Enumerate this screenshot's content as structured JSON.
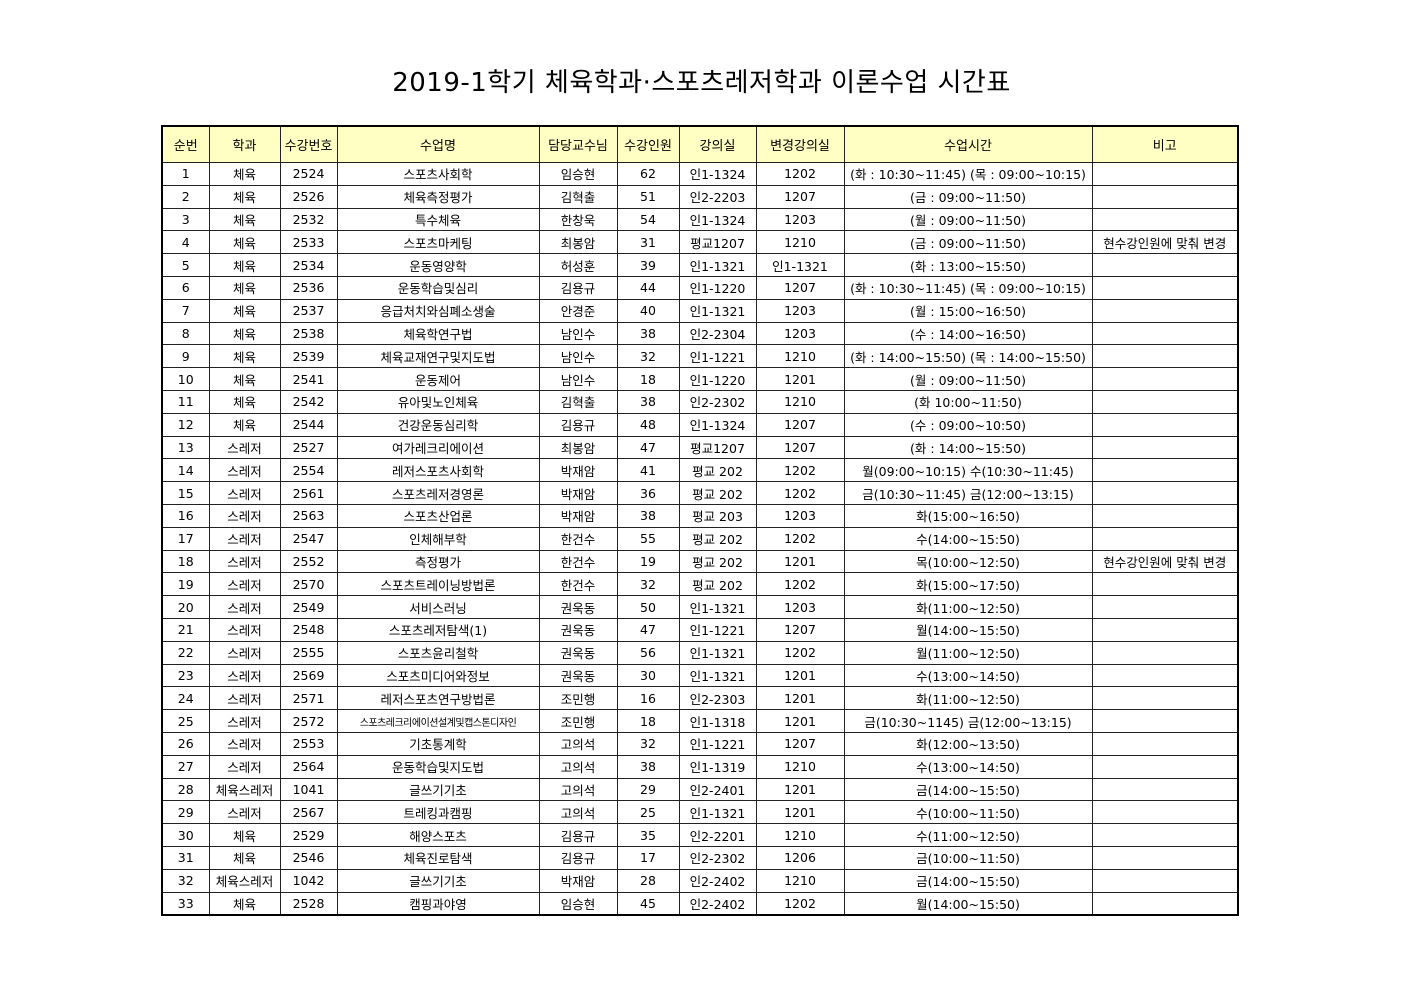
{
  "title": "2019-1학기 체육학과·스포츠레저학과 이론수업 시간표",
  "columns": [
    "순번",
    "학과",
    "수강번호",
    "수업명",
    "담당교수님",
    "수강인원",
    "강의실",
    "변경강의실",
    "수업시간",
    "비고"
  ],
  "header_color": "#ffffc4",
  "rows": [
    [
      "1",
      "체육",
      "2524",
      "스포츠사회학",
      "임승현",
      "62",
      "인1-1324",
      "1202",
      "(화 : 10:30~11:45) (목 : 09:00~10:15)",
      ""
    ],
    [
      "2",
      "체육",
      "2526",
      "체육측정평가",
      "김혁출",
      "51",
      "인2-2203",
      "1207",
      "(금 : 09:00~11:50)",
      ""
    ],
    [
      "3",
      "체육",
      "2532",
      "특수체육",
      "한창욱",
      "54",
      "인1-1324",
      "1203",
      "(월 : 09:00~11:50)",
      ""
    ],
    [
      "4",
      "체육",
      "2533",
      "스포츠마케팅",
      "최봉암",
      "31",
      "평교1207",
      "1210",
      "(금 : 09:00~11:50)",
      "현수강인원에 맞춰 변경"
    ],
    [
      "5",
      "체육",
      "2534",
      "운동영양학",
      "허성훈",
      "39",
      "인1-1321",
      "인1-1321",
      "(화 : 13:00~15:50)",
      ""
    ],
    [
      "6",
      "체육",
      "2536",
      "운동학습및심리",
      "김용규",
      "44",
      "인1-1220",
      "1207",
      "(화 : 10:30~11:45) (목 : 09:00~10:15)",
      ""
    ],
    [
      "7",
      "체육",
      "2537",
      "응급처치와심폐소생술",
      "안경준",
      "40",
      "인1-1321",
      "1203",
      "(월 : 15:00~16:50)",
      ""
    ],
    [
      "8",
      "체육",
      "2538",
      "체육학연구법",
      "남인수",
      "38",
      "인2-2304",
      "1203",
      "(수 : 14:00~16:50)",
      ""
    ],
    [
      "9",
      "체육",
      "2539",
      "체육교재연구및지도법",
      "남인수",
      "32",
      "인1-1221",
      "1210",
      "(화 : 14:00~15:50) (목 : 14:00~15:50)",
      ""
    ],
    [
      "10",
      "체육",
      "2541",
      "운동제어",
      "남인수",
      "18",
      "인1-1220",
      "1201",
      "(월 : 09:00~11:50)",
      ""
    ],
    [
      "11",
      "체육",
      "2542",
      "유아및노인체육",
      "김혁출",
      "38",
      "인2-2302",
      "1210",
      "(화 10:00~11:50)",
      ""
    ],
    [
      "12",
      "체육",
      "2544",
      "건강운동심리학",
      "김용규",
      "48",
      "인1-1324",
      "1207",
      "(수 : 09:00~10:50)",
      ""
    ],
    [
      "13",
      "스레저",
      "2527",
      "여가레크리에이션",
      "최봉암",
      "47",
      "평교1207",
      "1207",
      "(화 : 14:00~15:50)",
      ""
    ],
    [
      "14",
      "스레저",
      "2554",
      "레저스포츠사회학",
      "박재암",
      "41",
      "평교 202",
      "1202",
      "월(09:00~10:15) 수(10:30~11:45)",
      ""
    ],
    [
      "15",
      "스레저",
      "2561",
      "스포츠레저경영론",
      "박재암",
      "36",
      "평교 202",
      "1202",
      "금(10:30~11:45) 금(12:00~13:15)",
      ""
    ],
    [
      "16",
      "스레저",
      "2563",
      "스포츠산업론",
      "박재암",
      "38",
      "평교 203",
      "1203",
      "화(15:00~16:50)",
      ""
    ],
    [
      "17",
      "스레저",
      "2547",
      "인체해부학",
      "한건수",
      "55",
      "평교 202",
      "1202",
      "수(14:00~15:50)",
      ""
    ],
    [
      "18",
      "스레저",
      "2552",
      "측정평가",
      "한건수",
      "19",
      "평교 202",
      "1201",
      "목(10:00~12:50)",
      "현수강인원에 맞춰 변경"
    ],
    [
      "19",
      "스레저",
      "2570",
      "스포츠트레이닝방법론",
      "한건수",
      "32",
      "평교 202",
      "1202",
      "화(15:00~17:50)",
      ""
    ],
    [
      "20",
      "스레저",
      "2549",
      "서비스러닝",
      "권욱동",
      "50",
      "인1-1321",
      "1203",
      "화(11:00~12:50)",
      ""
    ],
    [
      "21",
      "스레저",
      "2548",
      "스포츠레저탐색(1)",
      "권욱동",
      "47",
      "인1-1221",
      "1207",
      "월(14:00~15:50)",
      ""
    ],
    [
      "22",
      "스레저",
      "2555",
      "스포츠윤리철학",
      "권욱동",
      "56",
      "인1-1321",
      "1202",
      "월(11:00~12:50)",
      ""
    ],
    [
      "23",
      "스레저",
      "2569",
      "스포츠미디어와정보",
      "권욱동",
      "30",
      "인1-1321",
      "1201",
      "수(13:00~14:50)",
      ""
    ],
    [
      "24",
      "스레저",
      "2571",
      "레저스포츠연구방법론",
      "조민행",
      "16",
      "인2-2303",
      "1201",
      "화(11:00~12:50)",
      ""
    ],
    [
      "25",
      "스레저",
      "2572",
      "스포츠레크리에이션설계및캡스톤디자인",
      "조민행",
      "18",
      "인1-1318",
      "1201",
      "금(10:30~1145) 금(12:00~13:15)",
      ""
    ],
    [
      "26",
      "스레저",
      "2553",
      "기초통계학",
      "고의석",
      "32",
      "인1-1221",
      "1207",
      "화(12:00~13:50)",
      ""
    ],
    [
      "27",
      "스레저",
      "2564",
      "운동학습및지도법",
      "고의석",
      "38",
      "인1-1319",
      "1210",
      "수(13:00~14:50)",
      ""
    ],
    [
      "28",
      "체육스레저",
      "1041",
      "글쓰기기초",
      "고의석",
      "29",
      "인2-2401",
      "1201",
      "금(14:00~15:50)",
      ""
    ],
    [
      "29",
      "스레저",
      "2567",
      "트레킹과캠핑",
      "고의석",
      "25",
      "인1-1321",
      "1201",
      "수(10:00~11:50)",
      ""
    ],
    [
      "30",
      "체육",
      "2529",
      "해양스포츠",
      "김용규",
      "35",
      "인2-2201",
      "1210",
      "수(11:00~12:50)",
      ""
    ],
    [
      "31",
      "체육",
      "2546",
      "체육진로탐색",
      "김용규",
      "17",
      "인2-2302",
      "1206",
      "금(10:00~11:50)",
      ""
    ],
    [
      "32",
      "체육스레저",
      "1042",
      "글쓰기기초",
      "박재암",
      "28",
      "인2-2402",
      "1210",
      "금(14:00~15:50)",
      ""
    ],
    [
      "33",
      "체육",
      "2528",
      "캠핑과야영",
      "임승현",
      "45",
      "인2-2402",
      "1202",
      "월(14:00~15:50)",
      ""
    ]
  ]
}
